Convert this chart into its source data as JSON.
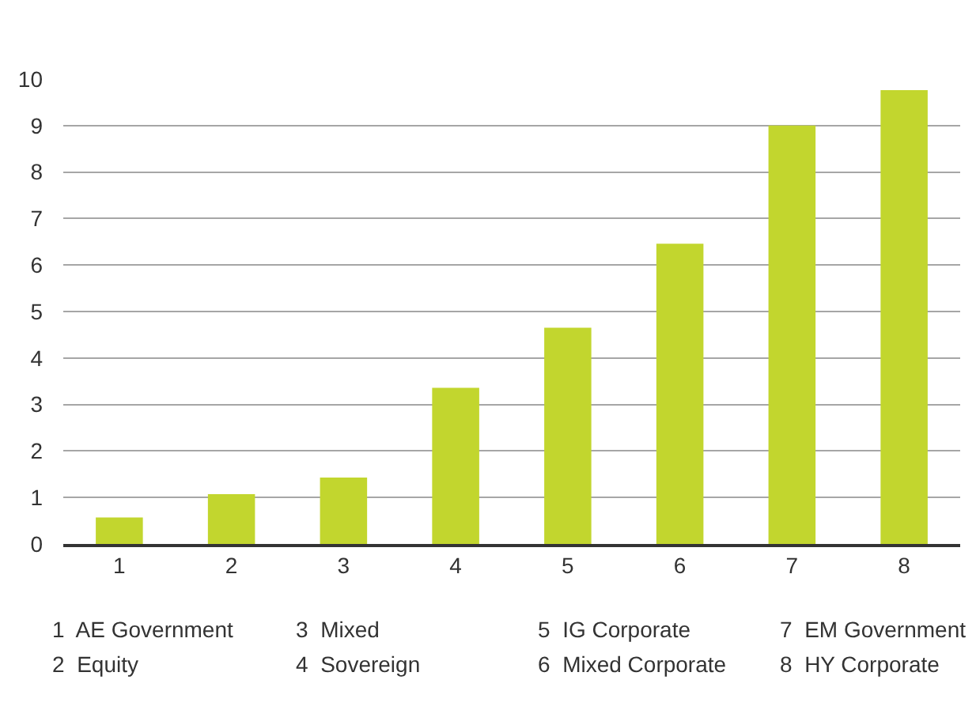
{
  "chart_data": {
    "type": "bar",
    "categories": [
      "1",
      "2",
      "3",
      "4",
      "5",
      "6",
      "7",
      "8"
    ],
    "values": [
      0.57,
      1.07,
      1.43,
      3.36,
      4.65,
      6.46,
      9.0,
      9.76
    ],
    "color": "#c2d62e",
    "ylim": [
      0,
      10
    ],
    "yticks": [
      0,
      1,
      2,
      3,
      4,
      5,
      6,
      7,
      8,
      9,
      10
    ],
    "grid": "y",
    "annotations": [
      "1  AE Government",
      "2  Equity",
      "3  Mixed",
      "4  Sovereign",
      "5  IG Corporate",
      "6  Mixed Corporate",
      "7  EM Government",
      "8  HY Corporate"
    ]
  }
}
